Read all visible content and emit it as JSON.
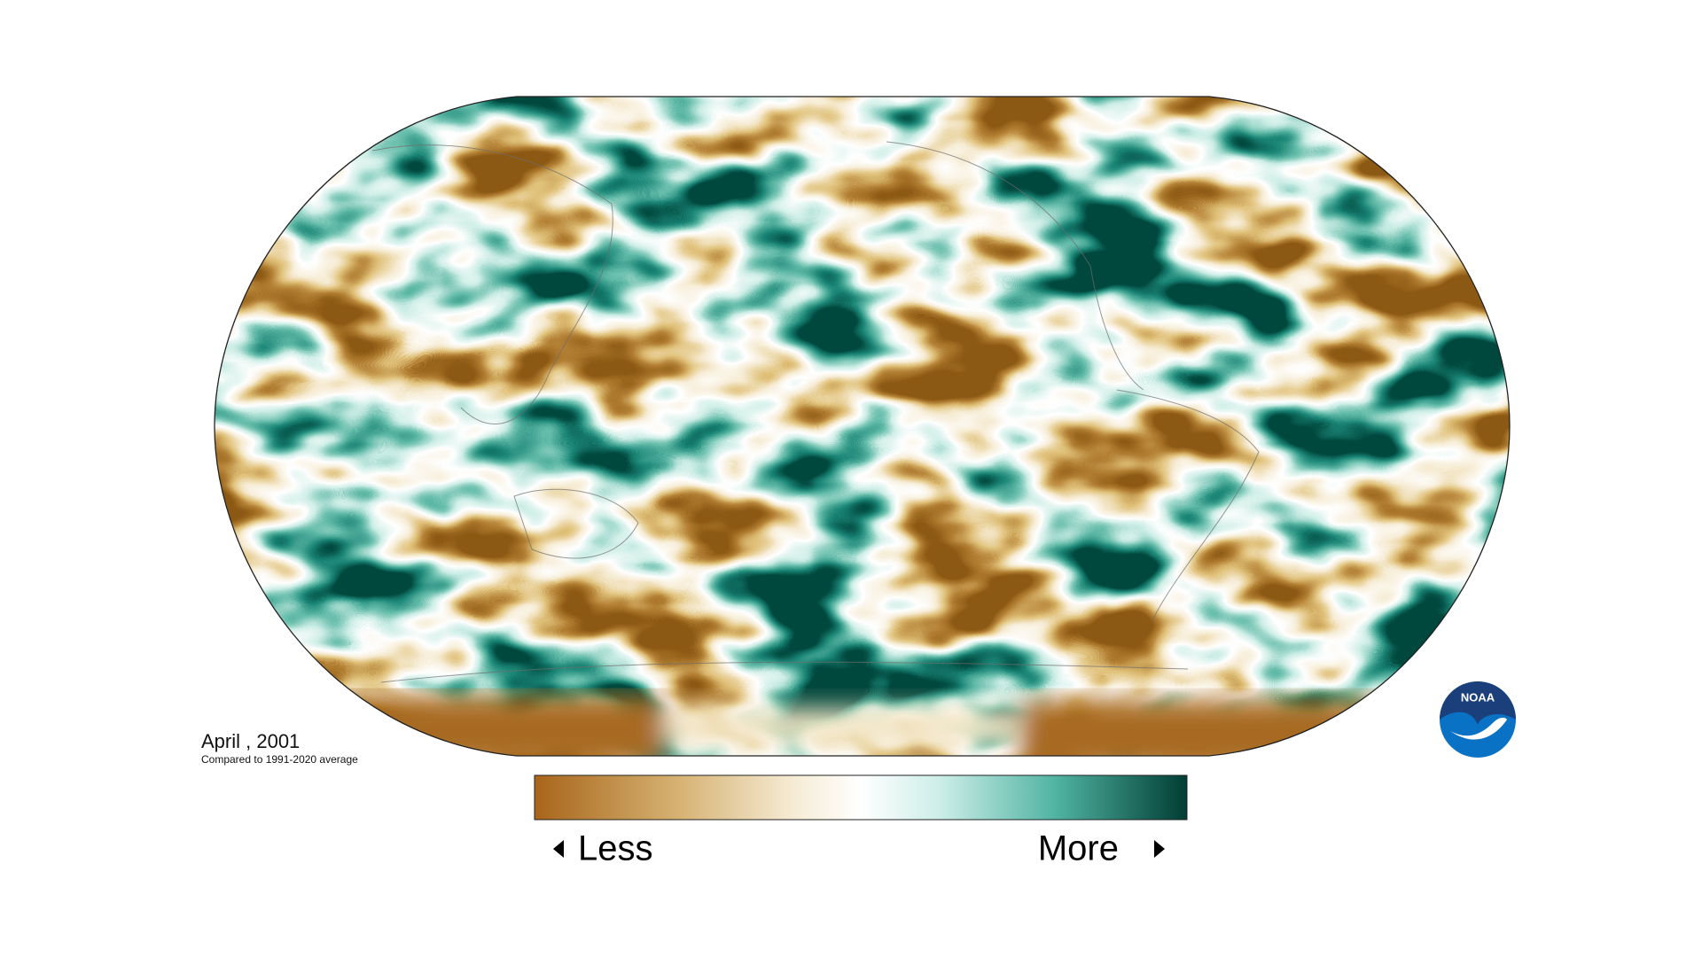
{
  "date_label": "April , 2001",
  "subtitle": "Compared to 1991-2020 average",
  "legend": {
    "low_label": "Less",
    "high_label": "More"
  },
  "logo": "NOAA"
}
